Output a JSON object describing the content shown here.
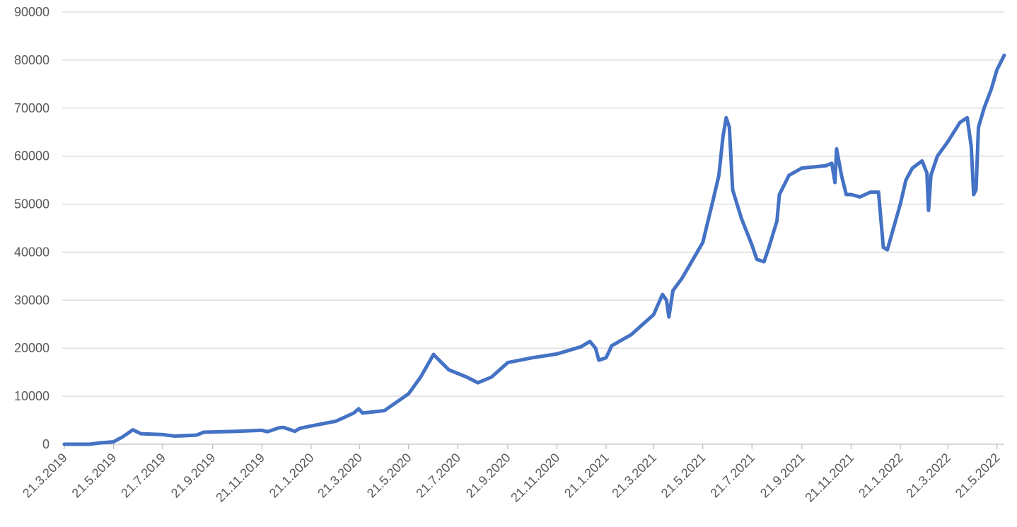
{
  "chart_data": {
    "type": "line",
    "x": [
      "21.3.2019",
      "21.4.2019",
      "5.5.2019",
      "21.5.2019",
      "1.6.2019",
      "14.6.2019",
      "24.6.2019",
      "21.7.2019",
      "5.8.2019",
      "1.9.2019",
      "10.9.2019",
      "21.10.2019",
      "21.11.2019",
      "28.11.2019",
      "12.12.2019",
      "18.12.2019",
      "1.1.2020",
      "7.1.2020",
      "21.1.2020",
      "21.2.2020",
      "14.3.2020",
      "20.3.2020",
      "25.3.2020",
      "21.4.2020",
      "21.5.2020",
      "5.6.2020",
      "21.6.2020",
      "28.6.2020",
      "10.7.2020",
      "1.8.2020",
      "15.8.2020",
      "1.9.2020",
      "21.9.2020",
      "21.10.2020",
      "21.11.2020",
      "21.12.2020",
      "1.1.2021",
      "8.1.2021",
      "12.1.2021",
      "21.1.2021",
      "28.1.2021",
      "21.2.2021",
      "21.3.2021",
      "1.4.2021",
      "6.4.2021",
      "9.4.2021",
      "14.4.2021",
      "25.4.2021",
      "21.5.2021",
      "3.6.2021",
      "10.6.2021",
      "15.6.2021",
      "19.6.2021",
      "23.6.2021",
      "27.6.2021",
      "8.7.2021",
      "21.7.2021",
      "27.7.2021",
      "5.8.2021",
      "11.8.2021",
      "21.8.2021",
      "24.8.2021",
      "5.9.2021",
      "21.9.2021",
      "21.10.2021",
      "28.10.2021",
      "1.11.2021",
      "3.11.2021",
      "9.11.2021",
      "15.11.2021",
      "21.11.2021",
      "2.12.2021",
      "15.12.2021",
      "25.12.2021",
      "31.12.2021",
      "5.1.2022",
      "21.1.2022",
      "28.1.2022",
      "5.2.2022",
      "17.2.2022",
      "23.2.2022",
      "25.2.2022",
      "28.2.2022",
      "8.3.2022",
      "21.3.2022",
      "5.4.2022",
      "14.4.2022",
      "19.4.2022",
      "22.4.2022",
      "25.4.2022",
      "28.4.2022",
      "5.5.2022",
      "14.5.2022",
      "21.5.2022",
      "30.5.2022"
    ],
    "series": [
      {
        "color": "#4472c4",
        "values": [
          0,
          0,
          300,
          500,
          1500,
          3000,
          2200,
          2000,
          1700,
          1900,
          2500,
          2700,
          2900,
          2600,
          3400,
          3500,
          2700,
          3300,
          3800,
          4800,
          6500,
          7400,
          6500,
          7000,
          10500,
          14000,
          18700,
          17500,
          15500,
          14000,
          12800,
          14000,
          17000,
          18000,
          18800,
          20300,
          21400,
          20000,
          17500,
          18000,
          20500,
          22800,
          27000,
          31200,
          30000,
          26500,
          32000,
          34500,
          42000,
          51000,
          56000,
          64000,
          68000,
          66000,
          53000,
          47000,
          41500,
          38500,
          38000,
          41000,
          46500,
          52000,
          56000,
          57500,
          58000,
          58500,
          54500,
          61500,
          56000,
          52000,
          52000,
          51500,
          52500,
          52500,
          41000,
          40500,
          50000,
          55000,
          57500,
          59000,
          56500,
          48700,
          56000,
          60000,
          63000,
          67000,
          68000,
          62000,
          52000,
          53000,
          66000,
          70000,
          74000,
          78000,
          81000
        ]
      }
    ],
    "xlim": [
      "21.3.2019",
      "30.5.2022"
    ],
    "xticks": [
      "21.3.2019",
      "21.5.2019",
      "21.7.2019",
      "21.9.2019",
      "21.11.2019",
      "21.1.2020",
      "21.3.2020",
      "21.5.2020",
      "21.7.2020",
      "21.9.2020",
      "21.11.2020",
      "21.1.2021",
      "21.3.2021",
      "21.5.2021",
      "21.7.2021",
      "21.9.2021",
      "21.11.2021",
      "21.1.2022",
      "21.3.2022",
      "21.5.2022"
    ],
    "ylim": [
      0,
      90000
    ],
    "yticks": [
      0,
      10000,
      20000,
      30000,
      40000,
      50000,
      60000,
      70000,
      80000,
      90000
    ],
    "grid": true
  }
}
